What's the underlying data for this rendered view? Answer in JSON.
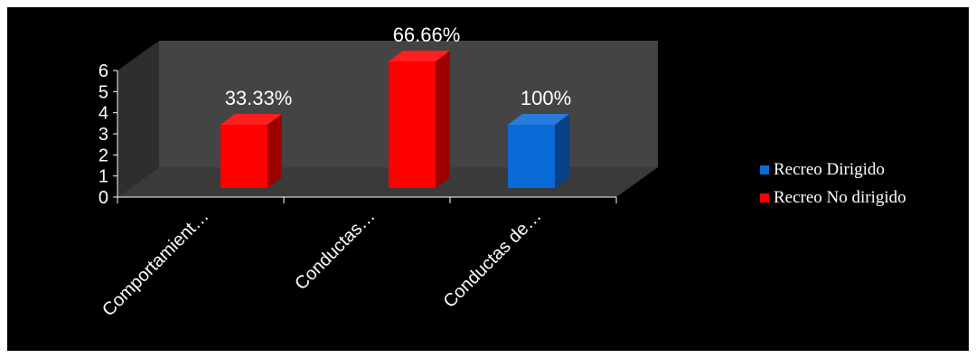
{
  "chart_data": {
    "type": "bar",
    "categories": [
      "Comportamient…",
      "Conductas…",
      "Conductas de…"
    ],
    "series": [
      {
        "name": "Recreo Dirigido",
        "color": "#0a6ad6",
        "values": [
          null,
          null,
          3
        ]
      },
      {
        "name": "Recreo No dirigido",
        "color": "#ff0000",
        "values": [
          3,
          6,
          null
        ]
      }
    ],
    "data_labels": [
      "33.33%",
      "66.66%",
      "100%"
    ],
    "ylim": [
      0,
      6
    ],
    "yticks": [
      "0",
      "1",
      "2",
      "3",
      "4",
      "5",
      "6"
    ],
    "grid": false,
    "legend_position": "right",
    "wall_color": "#444444",
    "floor_color": "#3a3a3a",
    "background": "#000000"
  }
}
